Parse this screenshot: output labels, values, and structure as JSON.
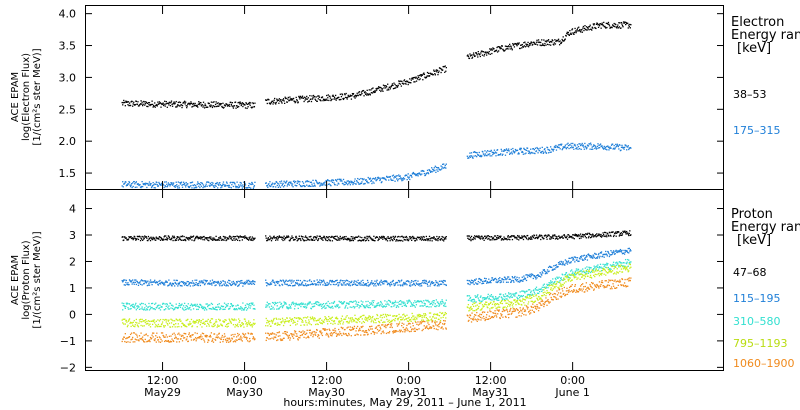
{
  "chart_data": [
    {
      "type": "scatter",
      "ylabel": [
        "ACE EPAM",
        "log(Electron Flux)",
        "[1/(cm²s ster MeV)]"
      ],
      "ylim": [
        1.25,
        4.12
      ],
      "yticks": [
        1.5,
        2.0,
        2.5,
        3.0,
        3.5,
        4.0
      ],
      "ytick_labels": [
        "1.5",
        "2.0",
        "2.5",
        "3.0",
        "3.5",
        "4.0"
      ],
      "legend_title": [
        "Electron",
        "Energy ran",
        "[keV]"
      ],
      "series": [
        {
          "name": "38–53",
          "color": "#000000",
          "segments": [
            {
              "x": [
                0,
                19.5
              ],
              "y": [
                2.6,
                2.57
              ]
            },
            {
              "x": [
                21,
                34,
                42,
                47.5
              ],
              "y": [
                2.63,
                2.72,
                2.95,
                3.15
              ]
            },
            {
              "x": [
                50.5,
                55,
                60,
                64,
                65.5,
                70,
                74.5
              ],
              "y": [
                3.32,
                3.45,
                3.55,
                3.57,
                3.72,
                3.83,
                3.83
              ]
            }
          ]
        },
        {
          "name": "175–315",
          "color": "#1f7fd8",
          "segments": [
            {
              "x": [
                0,
                19.5
              ],
              "y": [
                1.33,
                1.32
              ]
            },
            {
              "x": [
                21,
                34,
                42,
                47.5
              ],
              "y": [
                1.33,
                1.37,
                1.45,
                1.62
              ]
            },
            {
              "x": [
                50.5,
                53,
                58,
                62,
                65,
                70,
                74.5
              ],
              "y": [
                1.78,
                1.82,
                1.85,
                1.87,
                1.93,
                1.93,
                1.9
              ]
            }
          ]
        }
      ]
    },
    {
      "type": "scatter",
      "ylabel": [
        "ACE EPAM",
        "log(Proton Flux)",
        "[1/(cm²s ster MeV)]"
      ],
      "ylim": [
        -2.1,
        4.7
      ],
      "yticks": [
        -2,
        -1,
        0,
        1,
        2,
        3,
        4
      ],
      "ytick_labels": [
        "−2",
        "−1",
        "0",
        "1",
        "2",
        "3",
        "4"
      ],
      "legend_title": [
        "Proton",
        "Energy ran",
        "[keV]"
      ],
      "series": [
        {
          "name": "47–68",
          "color": "#000000",
          "segments": [
            {
              "x": [
                0,
                19.5
              ],
              "y": [
                2.9,
                2.9
              ]
            },
            {
              "x": [
                21,
                47.5
              ],
              "y": [
                2.9,
                2.88
              ]
            },
            {
              "x": [
                50.5,
                65,
                74.5
              ],
              "y": [
                2.9,
                2.95,
                3.1
              ]
            }
          ]
        },
        {
          "name": "115–195",
          "color": "#1f7fd8",
          "segments": [
            {
              "x": [
                0,
                19.5
              ],
              "y": [
                1.22,
                1.2
              ]
            },
            {
              "x": [
                21,
                47.5
              ],
              "y": [
                1.22,
                1.2
              ]
            },
            {
              "x": [
                50.5,
                58,
                61,
                63,
                66,
                74.5
              ],
              "y": [
                1.25,
                1.35,
                1.5,
                1.8,
                2.1,
                2.45
              ]
            }
          ]
        },
        {
          "name": "310–580",
          "color": "#33e0d0",
          "segments": [
            {
              "x": [
                0,
                19.5
              ],
              "y": [
                0.32,
                0.32
              ]
            },
            {
              "x": [
                21,
                47.5
              ],
              "y": [
                0.35,
                0.45
              ]
            },
            {
              "x": [
                50.5,
                58,
                61,
                63,
                66,
                74.5
              ],
              "y": [
                0.6,
                0.75,
                0.95,
                1.25,
                1.6,
                2.0
              ]
            }
          ]
        },
        {
          "name": "795–1193",
          "color": "#c8ee1a",
          "segments": [
            {
              "x": [
                0,
                19.5
              ],
              "y": [
                -0.3,
                -0.3
              ]
            },
            {
              "x": [
                21,
                47.5
              ],
              "y": [
                -0.28,
                -0.05
              ]
            },
            {
              "x": [
                50.5,
                58,
                61,
                63,
                66,
                74.5
              ],
              "y": [
                0.3,
                0.45,
                0.7,
                1.05,
                1.45,
                1.8
              ]
            }
          ]
        },
        {
          "name": "1060–1900",
          "color": "#f08a1c",
          "segments": [
            {
              "x": [
                0,
                19.5
              ],
              "y": [
                -0.85,
                -0.85
              ]
            },
            {
              "x": [
                21,
                47.5
              ],
              "y": [
                -0.85,
                -0.35
              ]
            },
            {
              "x": [
                50.5,
                58,
                61,
                63,
                66,
                74.5
              ],
              "y": [
                -0.1,
                0.1,
                0.3,
                0.7,
                1.0,
                1.25
              ]
            }
          ]
        }
      ]
    }
  ],
  "x_axis": {
    "xlim": [
      -5.2,
      88
    ],
    "ticks": [
      {
        "x": 6,
        "time": "12:00",
        "day": "May29"
      },
      {
        "x": 18,
        "time": "0:00",
        "day": "May30"
      },
      {
        "x": 30,
        "time": "12:00",
        "day": "May30"
      },
      {
        "x": 42,
        "time": "0:00",
        "day": "May31"
      },
      {
        "x": 54,
        "time": "12:00",
        "day": "May31"
      },
      {
        "x": 66,
        "time": "0:00",
        "day": "June 1"
      }
    ],
    "label": "hours:minutes, May 29, 2011 – June  1, 2011"
  }
}
